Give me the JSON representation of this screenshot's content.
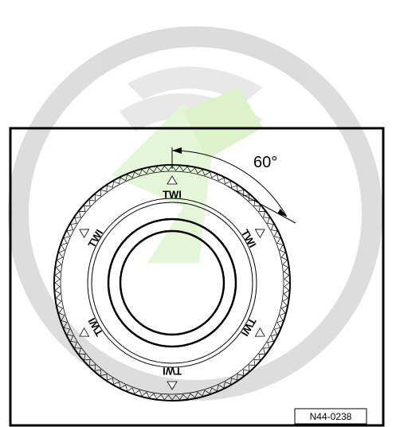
{
  "angle_label": "60°",
  "twi_markers": [
    "TWI",
    "TWI",
    "TWI",
    "TWI",
    "TWI",
    "TWI"
  ],
  "figure_code": "N44-0238"
}
